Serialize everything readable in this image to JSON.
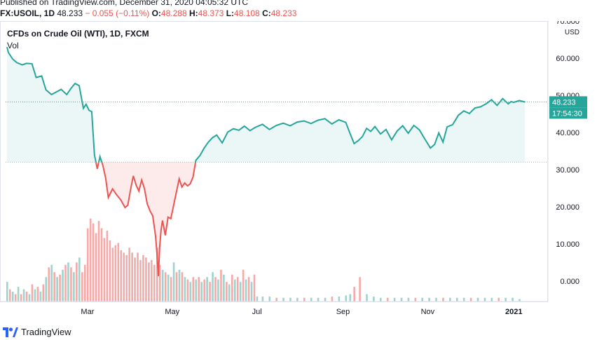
{
  "header": {
    "published": "Published on TradingView.com, December 31, 2020 04:05:32 UTC",
    "symbol": "FX:USOIL, 1D",
    "last": "48.233",
    "change": "− 0.055 (−0.11%)",
    "o_label": "O:",
    "o_value": "48.288",
    "h_label": "H:",
    "h_value": "48.373",
    "l_label": "L:",
    "l_value": "48.108",
    "c_label": "C:",
    "c_value": "48.233"
  },
  "legend": {
    "title": "CFDs on Crude Oil (WTI), 1D, FXCM",
    "vol": "Vol"
  },
  "footer": {
    "brand": "TradingView"
  },
  "colors": {
    "up": "#26a69a",
    "down": "#ef5350",
    "grid": "#e0e3eb",
    "text": "#131722"
  },
  "chart_data": {
    "type": "area",
    "title": "CFDs on Crude Oil (WTI), 1D, FXCM",
    "currency": "USD",
    "ylim": [
      -5.5,
      70
    ],
    "yticks": [
      "70.000",
      "60.000",
      "50.000",
      "40.000",
      "30.000",
      "20.000",
      "10.000",
      "0.000"
    ],
    "ytick_values": [
      70,
      60,
      50,
      40,
      30,
      20,
      10,
      0
    ],
    "xticks": [
      {
        "label": "Mar",
        "day": 59
      },
      {
        "label": "May",
        "day": 120
      },
      {
        "label": "Jul",
        "day": 181
      },
      {
        "label": "Sep",
        "day": 243
      },
      {
        "label": "Nov",
        "day": 304
      },
      {
        "label": "2021",
        "day": 366
      }
    ],
    "xlim_days": [
      0,
      378
    ],
    "baseline": 32,
    "last_price": "48.233",
    "last_value": 48.233,
    "countdown": "17:54:30",
    "series": [
      {
        "name": "USOIL",
        "x": [
          1,
          2,
          5,
          8,
          12,
          15,
          19,
          22,
          26,
          29,
          33,
          36,
          40,
          44,
          47,
          50,
          53,
          56,
          58,
          60,
          62,
          64,
          66,
          68,
          70,
          72,
          74,
          77,
          80,
          83,
          86,
          88,
          90,
          92,
          94,
          96,
          98,
          100,
          102,
          104,
          106,
          108,
          109,
          110,
          111,
          112,
          113,
          115,
          117,
          119,
          121,
          123,
          125,
          127,
          129,
          131,
          133,
          135,
          137,
          140,
          143,
          146,
          149,
          152,
          156,
          160,
          164,
          168,
          172,
          176,
          180,
          185,
          190,
          195,
          200,
          205,
          210,
          215,
          220,
          225,
          230,
          235,
          240,
          245,
          248,
          251,
          254,
          257,
          260,
          263,
          266,
          270,
          274,
          278,
          282,
          286,
          290,
          294,
          298,
          302,
          306,
          309,
          312,
          315,
          318,
          322,
          326,
          330,
          334,
          338,
          342,
          346,
          350,
          354,
          358,
          362,
          364,
          366,
          370,
          374
        ],
        "values": [
          63,
          61.5,
          59.8,
          58.8,
          58.2,
          58.6,
          58.5,
          54.8,
          55.2,
          51.5,
          50.2,
          50.8,
          51.6,
          50.2,
          51.8,
          53.2,
          52.6,
          46.5,
          47.6,
          46.0,
          45.6,
          34.0,
          30.2,
          33.5,
          31.2,
          27.8,
          22.5,
          24.8,
          23.2,
          21.8,
          19.8,
          20.4,
          24.6,
          28.3,
          25.8,
          24.2,
          27.2,
          24.9,
          20.8,
          18.9,
          17.5,
          12.1,
          7.4,
          1.3,
          9.2,
          13.8,
          16.3,
          12.3,
          17.2,
          16.8,
          20.4,
          23.9,
          27.5,
          25.3,
          26.4,
          25.6,
          26.2,
          28.0,
          32.5,
          33.8,
          35.8,
          37.4,
          38.6,
          39.3,
          37.2,
          40.1,
          41.0,
          40.6,
          41.7,
          40.5,
          41.4,
          42.2,
          40.8,
          41.9,
          42.5,
          41.8,
          42.8,
          43.1,
          42.4,
          43.3,
          43.7,
          42.3,
          43.4,
          42.7,
          39.8,
          37.0,
          37.8,
          38.9,
          41.1,
          40.3,
          41.6,
          39.6,
          40.8,
          38.0,
          40.4,
          41.8,
          39.8,
          41.9,
          40.7,
          38.2,
          35.8,
          36.8,
          39.9,
          37.4,
          41.5,
          42.1,
          44.6,
          45.8,
          45.1,
          46.6,
          46.9,
          47.7,
          48.8,
          47.3,
          49.1,
          47.7,
          48.3,
          48.1,
          48.6,
          48.2
        ]
      },
      {
        "name": "Vol",
        "x": [
          1,
          3,
          5,
          7,
          9,
          11,
          13,
          15,
          17,
          19,
          21,
          23,
          25,
          27,
          29,
          31,
          33,
          35,
          37,
          39,
          41,
          43,
          45,
          47,
          49,
          51,
          53,
          55,
          57,
          59,
          61,
          63,
          65,
          67,
          69,
          71,
          73,
          75,
          77,
          79,
          81,
          83,
          85,
          87,
          89,
          91,
          93,
          95,
          97,
          99,
          101,
          103,
          105,
          107,
          109,
          111,
          113,
          115,
          117,
          119,
          121,
          123,
          125,
          127,
          129,
          131,
          133,
          135,
          137,
          139,
          141,
          143,
          145,
          147,
          149,
          151,
          153,
          155,
          157,
          159,
          161,
          163,
          165,
          167,
          169,
          171,
          173,
          175,
          177,
          179,
          181,
          185,
          190,
          195,
          200,
          205,
          210,
          215,
          220,
          225,
          230,
          235,
          240,
          245,
          248,
          251,
          255,
          260,
          265,
          270,
          275,
          280,
          285,
          290,
          295,
          300,
          305,
          310,
          315,
          320,
          325,
          330,
          335,
          340,
          345,
          350,
          355,
          360,
          365,
          370
        ],
        "values": [
          0.8,
          0.5,
          0.4,
          0.3,
          0.6,
          0.3,
          0.5,
          0.4,
          0.3,
          0.7,
          0.5,
          0.6,
          0.4,
          0.7,
          1.0,
          1.4,
          1.5,
          1.2,
          1.0,
          1.1,
          1.3,
          1.5,
          1.6,
          1.4,
          1.2,
          1.6,
          1.8,
          1.2,
          1.5,
          3.0,
          3.4,
          3.2,
          2.8,
          3.3,
          3.0,
          2.6,
          2.9,
          2.5,
          2.2,
          2.3,
          2.4,
          2.1,
          2.0,
          1.9,
          2.2,
          2.0,
          1.8,
          2.0,
          1.7,
          1.9,
          1.8,
          1.6,
          1.7,
          1.5,
          2.2,
          1.5,
          1.3,
          1.2,
          1.1,
          1.0,
          1.6,
          1.2,
          1.3,
          1.2,
          1.0,
          0.9,
          0.8,
          1.0,
          0.9,
          1.0,
          0.8,
          0.9,
          1.0,
          0.8,
          1.2,
          1.0,
          0.9,
          1.3,
          1.1,
          0.8,
          0.7,
          1.1,
          0.9,
          1.0,
          0.8,
          1.3,
          0.9,
          1.0,
          0.8,
          1.1,
          0.2,
          0.2,
          0.2,
          0.15,
          0.15,
          0.15,
          0.15,
          0.15,
          0.15,
          0.15,
          0.15,
          0.2,
          0.2,
          0.25,
          0.3,
          0.6,
          1.0,
          0.3,
          0.2,
          0.15,
          0.15,
          0.15,
          0.15,
          0.15,
          0.15,
          0.15,
          0.15,
          0.15,
          0.15,
          0.15,
          0.15,
          0.15,
          0.15,
          0.15,
          0.15,
          0.15,
          0.15,
          0.15,
          0.15,
          0.1
        ]
      }
    ]
  }
}
